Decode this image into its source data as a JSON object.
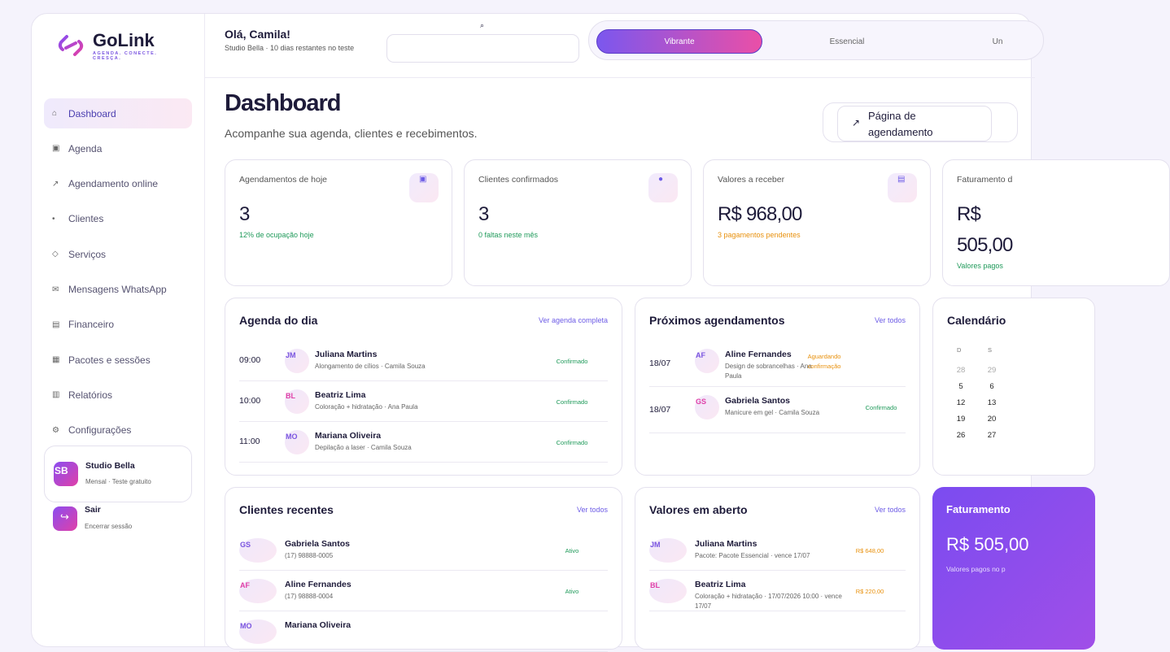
{
  "sidebar": {
    "brand": "GoLink",
    "tagline": "AGENDA. CONECTE. CRESÇA.",
    "nav": [
      {
        "icon": "⌂",
        "label": "Dashboard"
      },
      {
        "icon": "▣",
        "label": "Agenda"
      },
      {
        "icon": "↗",
        "label": "Agendamento online"
      },
      {
        "icon": "•",
        "label": "Clientes"
      },
      {
        "icon": "◇",
        "label": "Serviços"
      },
      {
        "icon": "✉",
        "label": "Mensagens WhatsApp"
      },
      {
        "icon": "▤",
        "label": "Financeiro"
      },
      {
        "icon": "▦",
        "label": "Pacotes e sessões"
      },
      {
        "icon": "▥",
        "label": "Relatórios"
      },
      {
        "icon": "⚙",
        "label": "Configurações"
      }
    ],
    "account": {
      "initials": "SB",
      "name": "Studio Bella",
      "plan": "Mensal · Teste gratuito"
    },
    "logout": {
      "icon": "↪",
      "label": "Sair",
      "detail": "Encerrar sessão"
    }
  },
  "header": {
    "greeting": "Olá, Camila!",
    "subtitle": "Studio Bella · 10 dias restantes no teste",
    "search_icon": "⌕",
    "themes": [
      "Vibrante",
      "Essencial",
      "Un"
    ]
  },
  "page": {
    "title": "Dashboard",
    "subtitle": "Acompanhe sua agenda, clientes e recebimentos.",
    "button_icon": "↗",
    "button": "Página de agendamento"
  },
  "stats": [
    {
      "label": "Agendamentos de hoje",
      "icon": "▣",
      "value": "3",
      "note": "12% de ocupação hoje"
    },
    {
      "label": "Clientes confirmados",
      "icon": "●",
      "value": "3",
      "note": "0 faltas neste mês"
    },
    {
      "label": "Valores a receber",
      "icon": "▤",
      "value": "R$ 968,00",
      "note": "3 pagamentos pendentes"
    },
    {
      "label": "Faturamento d",
      "icon": "",
      "value": "R$ 505,00",
      "note": "Valores pagos"
    }
  ],
  "agenda": {
    "title": "Agenda do dia",
    "link": "Ver agenda completa",
    "rows": [
      {
        "time": "09:00",
        "initials": "JM",
        "name": "Juliana Martins",
        "detail": "Alongamento de cílios · Camila Souza",
        "status": "Confirmado"
      },
      {
        "time": "10:00",
        "initials": "BL",
        "name": "Beatriz Lima",
        "detail": "Coloração + hidratação · Ana Paula",
        "status": "Confirmado"
      },
      {
        "time": "11:00",
        "initials": "MO",
        "name": "Mariana Oliveira",
        "detail": "Depilação a laser · Camila Souza",
        "status": "Confirmado"
      }
    ]
  },
  "upcoming": {
    "title": "Próximos agendamentos",
    "link": "Ver todos",
    "rows": [
      {
        "time": "18/07",
        "initials": "AF",
        "name": "Aline Fernandes",
        "detail": "Design de sobrancelhas · Ana Paula",
        "status": "Aguardando confirmação"
      },
      {
        "time": "18/07",
        "initials": "GS",
        "name": "Gabriela Santos",
        "detail": "Manicure em gel · Camila Souza",
        "status": "Confirmado"
      }
    ]
  },
  "calendar": {
    "title": "Calendário",
    "weekdays": [
      "D",
      "S"
    ],
    "weeks": [
      [
        "28",
        "29"
      ],
      [
        "5",
        "6"
      ],
      [
        "12",
        "13"
      ],
      [
        "19",
        "20"
      ],
      [
        "26",
        "27"
      ]
    ]
  },
  "clients": {
    "title": "Clientes recentes",
    "link": "Ver todos",
    "rows": [
      {
        "initials": "GS",
        "name": "Gabriela Santos",
        "detail": "(17) 98888-0005",
        "status": "Ativo"
      },
      {
        "initials": "AF",
        "name": "Aline Fernandes",
        "detail": "(17) 98888-0004",
        "status": "Ativo"
      },
      {
        "initials": "MO",
        "name": "Mariana Oliveira",
        "detail": "",
        "status": ""
      }
    ]
  },
  "open_values": {
    "title": "Valores em aberto",
    "link": "Ver todos",
    "rows": [
      {
        "initials": "JM",
        "name": "Juliana Martins",
        "detail": "Pacote: Pacote Essencial · vence 17/07",
        "status": "R$ 648,00"
      },
      {
        "initials": "BL",
        "name": "Beatriz Lima",
        "detail": "Coloração + hidratação · 17/07/2026 10:00 · vence 17/07",
        "status": "R$ 220,00"
      }
    ]
  },
  "revenue": {
    "title": "Faturamento",
    "value": "R$ 505,00",
    "note": "Valores pagos no p"
  }
}
